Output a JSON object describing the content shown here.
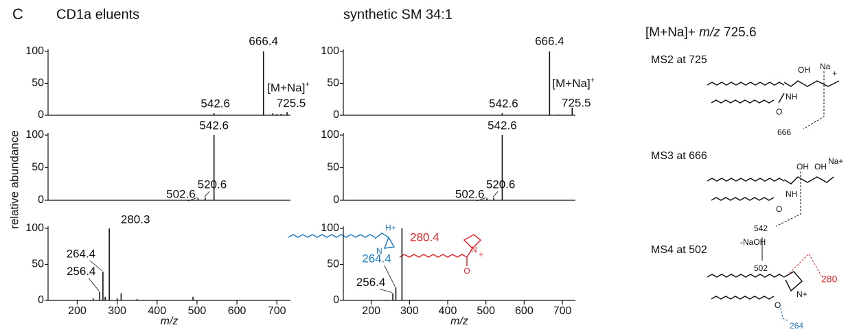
{
  "panel_label": "C",
  "chart_data": [
    {
      "type": "spectrum",
      "title": "CD1a eluents",
      "x": [
        200,
        300,
        400,
        480,
        542.6,
        560,
        666.4,
        690,
        700,
        710,
        725.5
      ],
      "values": [
        0.5,
        0.5,
        0.5,
        0.5,
        3,
        1,
        100,
        3,
        2,
        2,
        5
      ],
      "peak_labels": [
        null,
        null,
        null,
        null,
        "542.6",
        null,
        "666.4",
        null,
        null,
        null,
        "725.5"
      ],
      "annotation": "[M+Na]",
      "annotation_sup": "+",
      "xlim": [
        127,
        734
      ],
      "ylim": [
        0,
        100
      ],
      "yticks": [
        0,
        50,
        100
      ]
    },
    {
      "type": "spectrum",
      "x": [
        300,
        400,
        502.6,
        520.6,
        542.6,
        560
      ],
      "values": [
        0.3,
        0.3,
        3,
        4,
        100,
        0.5
      ],
      "peak_labels": [
        null,
        null,
        "502.6",
        "520.6",
        "542.6",
        null
      ],
      "y_label": "relative abundance",
      "xlim": [
        127,
        734
      ],
      "ylim": [
        0,
        100
      ],
      "yticks": [
        0,
        50,
        100
      ]
    },
    {
      "type": "spectrum",
      "x": [
        160,
        200,
        240,
        256.4,
        264.4,
        270,
        280.3,
        300,
        310,
        350,
        400,
        490,
        600
      ],
      "values": [
        0.5,
        1,
        3,
        12,
        40,
        5,
        100,
        3,
        10,
        2,
        1,
        5,
        0.5
      ],
      "peak_labels": [
        null,
        null,
        null,
        "256.4",
        "264.4",
        null,
        "280.3",
        null,
        null,
        null,
        null,
        null,
        null
      ],
      "x_label": "m/z",
      "xlim": [
        127,
        734
      ],
      "xticks": [
        200,
        300,
        400,
        500,
        600,
        700
      ],
      "ylim": [
        0,
        100
      ],
      "yticks": [
        0,
        50,
        100
      ]
    },
    {
      "type": "spectrum",
      "title": "synthetic SM 34:1",
      "x": [
        300,
        542.6,
        600,
        666.4,
        690,
        725.5
      ],
      "values": [
        0.3,
        3,
        0.5,
        100,
        1,
        12
      ],
      "peak_labels": [
        null,
        "542.6",
        null,
        "666.4",
        null,
        "725.5"
      ],
      "annotation": "[M+Na]",
      "annotation_sup": "+",
      "xlim": [
        127,
        734
      ],
      "ylim": [
        0,
        100
      ],
      "yticks": [
        0,
        50,
        100
      ]
    },
    {
      "type": "spectrum",
      "x": [
        300,
        502.6,
        520.6,
        542.6,
        560
      ],
      "values": [
        0.3,
        3,
        4,
        100,
        0.5
      ],
      "peak_labels": [
        null,
        "502.6",
        "520.6",
        "542.6",
        null
      ],
      "xlim": [
        127,
        734
      ],
      "ylim": [
        0,
        100
      ],
      "yticks": [
        0,
        50,
        100
      ]
    },
    {
      "type": "spectrum",
      "x": [
        240,
        256.4,
        264.4,
        280.4,
        300,
        600
      ],
      "values": [
        1,
        10,
        18,
        100,
        1,
        0.5
      ],
      "peak_labels": [
        null,
        "256.4",
        "264.4",
        "280.4",
        null,
        null
      ],
      "peak_label_colors": [
        null,
        null,
        "#1a7cc1",
        "#e3232a",
        null,
        null
      ],
      "x_label": "m/z",
      "xlim": [
        127,
        734
      ],
      "xticks": [
        200,
        300,
        400,
        500,
        600,
        700
      ],
      "ylim": [
        0,
        100
      ],
      "yticks": [
        0,
        50,
        100
      ],
      "structure_labels": {
        "h": "H+",
        "n1": "N",
        "n2": "N",
        "plus": "+",
        "o": "O"
      }
    }
  ],
  "scheme": {
    "title": "[M+Na]+",
    "title_mz": "m/z",
    "title_value": "725.6",
    "ms2": "MS2 at 725",
    "ms2_oh": "OH",
    "ms2_na": "Na",
    "ms2_plus": "+",
    "ms2_nh": "NH",
    "ms2_o": "O",
    "ms2_frag": "666",
    "ms3": "MS3 at 666",
    "ms3_oh": "OH",
    "ms3_oh2": "OH",
    "ms3_na": "Na+",
    "ms3_nh": "NH",
    "ms3_o": "O",
    "ms3_frag": "542",
    "loss": "-NaOH",
    "loss_product": "502",
    "ms4": "MS4 at 502",
    "ms4_n": "N+",
    "ms4_o": "O",
    "ms4_red": "280",
    "ms4_blue": "264"
  }
}
